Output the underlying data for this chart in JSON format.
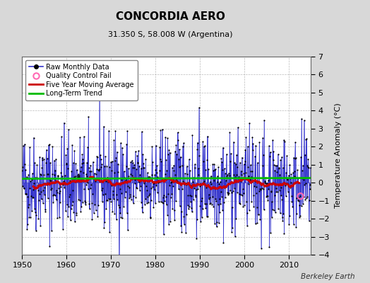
{
  "title": "CONCORDIA AERO",
  "subtitle": "31.350 S, 58.008 W (Argentina)",
  "ylabel": "Temperature Anomaly (°C)",
  "attribution": "Berkeley Earth",
  "xlim": [
    1950,
    2015
  ],
  "ylim": [
    -4,
    7
  ],
  "yticks": [
    -4,
    -3,
    -2,
    -1,
    0,
    1,
    2,
    3,
    4,
    5,
    6,
    7
  ],
  "xticks": [
    1950,
    1960,
    1970,
    1980,
    1990,
    2000,
    2010
  ],
  "bg_color": "#d8d8d8",
  "plot_bg_color": "#ffffff",
  "raw_line_color": "#3333cc",
  "raw_marker_color": "#000000",
  "ma_color": "#cc0000",
  "trend_color": "#00bb00",
  "qc_color": "#ff69b4",
  "seed": 42,
  "n_months": 780,
  "start_year": 1950,
  "trend_intercept": 0.22,
  "trend_slope": 5e-05,
  "ma_window": 60,
  "noise_std": 1.35,
  "qc_fail_index": 752,
  "qc_fail_value": -0.75
}
